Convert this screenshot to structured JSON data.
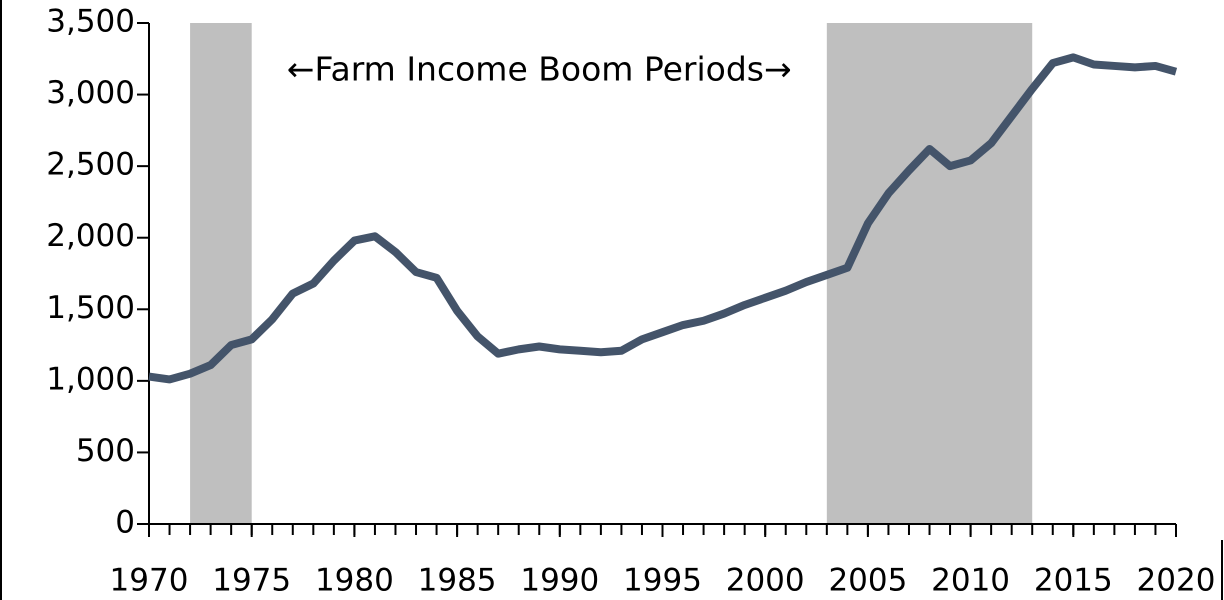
{
  "chart_data": {
    "type": "line",
    "annotation": "←Farm Income Boom Periods→",
    "shaded_periods": [
      [
        1972,
        1975
      ],
      [
        2003,
        2013
      ]
    ],
    "shade_color": "#bfbfbf",
    "x": [
      1970,
      1971,
      1972,
      1973,
      1974,
      1975,
      1976,
      1977,
      1978,
      1979,
      1980,
      1981,
      1982,
      1983,
      1984,
      1985,
      1986,
      1987,
      1988,
      1989,
      1990,
      1991,
      1992,
      1993,
      1994,
      1995,
      1996,
      1997,
      1998,
      1999,
      2000,
      2001,
      2002,
      2003,
      2004,
      2005,
      2006,
      2007,
      2008,
      2009,
      2010,
      2011,
      2012,
      2013,
      2014,
      2015,
      2016,
      2017,
      2018,
      2019,
      2020
    ],
    "series": [
      {
        "color": "#44546a",
        "values": [
          1030,
          1010,
          1050,
          1110,
          1250,
          1290,
          1430,
          1610,
          1680,
          1840,
          1980,
          2010,
          1900,
          1760,
          1720,
          1490,
          1310,
          1190,
          1220,
          1240,
          1220,
          1210,
          1200,
          1210,
          1290,
          1340,
          1390,
          1420,
          1470,
          1530,
          1580,
          1630,
          1690,
          1740,
          1790,
          2100,
          2310,
          2470,
          2620,
          2500,
          2540,
          2660,
          2850,
          3040,
          3220,
          3260,
          3210,
          3200,
          3190,
          3200,
          3160
        ]
      }
    ],
    "xlim": [
      1970,
      2020
    ],
    "xticks": [
      1970,
      1975,
      1980,
      1985,
      1990,
      1995,
      2000,
      2005,
      2010,
      2015,
      2020
    ],
    "ylim": [
      0,
      3500
    ],
    "yticks": [
      0,
      500,
      {
        "value": 1000,
        "label": "1,000"
      },
      {
        "value": 1500,
        "label": "1,500"
      },
      {
        "value": 2000,
        "label": "2,000"
      },
      {
        "value": 2500,
        "label": "2,500"
      },
      {
        "value": 3000,
        "label": "3,000"
      },
      {
        "value": 3500,
        "label": "3,500"
      }
    ],
    "grid": false
  }
}
